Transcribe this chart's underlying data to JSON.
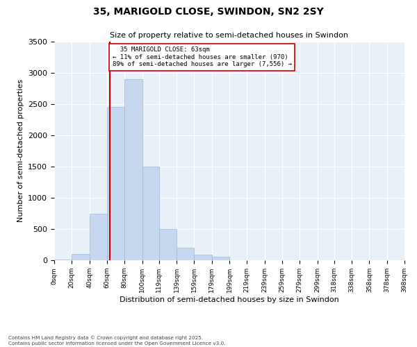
{
  "title_line1": "35, MARIGOLD CLOSE, SWINDON, SN2 2SY",
  "title_line2": "Size of property relative to semi-detached houses in Swindon",
  "xlabel": "Distribution of semi-detached houses by size in Swindon",
  "ylabel": "Number of semi-detached properties",
  "footnote": "Contains HM Land Registry data © Crown copyright and database right 2025.\nContains public sector information licensed under the Open Government Licence v3.0.",
  "bar_labels": [
    "0sqm",
    "20sqm",
    "40sqm",
    "60sqm",
    "80sqm",
    "100sqm",
    "119sqm",
    "139sqm",
    "159sqm",
    "179sqm",
    "199sqm",
    "219sqm",
    "239sqm",
    "259sqm",
    "279sqm",
    "299sqm",
    "318sqm",
    "338sqm",
    "358sqm",
    "378sqm",
    "398sqm"
  ],
  "bar_values": [
    10,
    100,
    750,
    2450,
    2900,
    1500,
    500,
    200,
    90,
    60,
    0,
    0,
    0,
    0,
    0,
    0,
    0,
    0,
    0,
    0,
    0
  ],
  "bin_edges": [
    0,
    20,
    40,
    60,
    80,
    100,
    119,
    139,
    159,
    179,
    199,
    219,
    239,
    259,
    279,
    299,
    318,
    338,
    358,
    378,
    398
  ],
  "property_size": 63,
  "property_label": "35 MARIGOLD CLOSE: 63sqm",
  "percent_smaller": 11,
  "count_smaller": 970,
  "percent_larger": 89,
  "count_larger": 7556,
  "bar_color": "#c5d8f0",
  "bar_edge_color": "#a0b8d8",
  "line_color": "#cc0000",
  "box_edge_color": "#cc0000",
  "background_color": "#e8f0f8",
  "ylim": [
    0,
    3500
  ],
  "yticks": [
    0,
    500,
    1000,
    1500,
    2000,
    2500,
    3000,
    3500
  ]
}
